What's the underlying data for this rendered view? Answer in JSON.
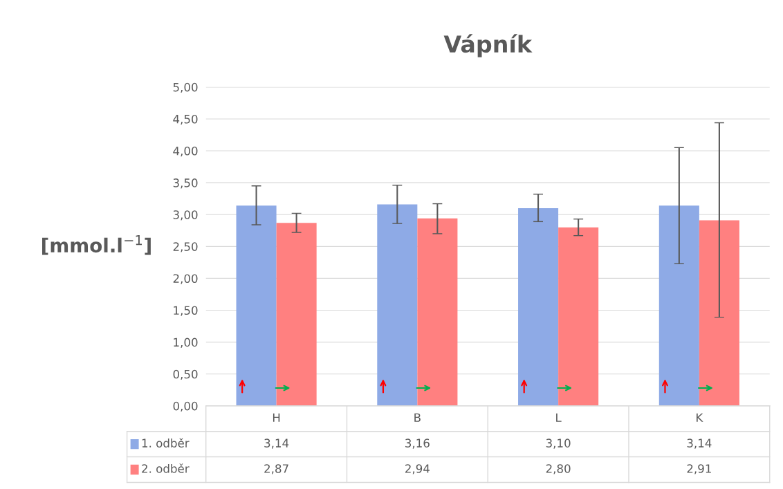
{
  "chart_data": {
    "type": "bar",
    "title": "Vápník",
    "ylabel": "[mmol.l$^{−1}$]",
    "legend": "bottom left",
    "categories": [
      "H",
      "B",
      "L",
      "K"
    ],
    "series": [
      {
        "name": "1. odběr",
        "color": "#8eaae6",
        "values": [
          3.14,
          3.16,
          3.1,
          3.14
        ],
        "value_labels": [
          "3,14",
          "3,16",
          "3,10",
          "3,14"
        ],
        "errors": [
          [
            2.84,
            3.45
          ],
          [
            2.86,
            3.46
          ],
          [
            2.89,
            3.32
          ],
          [
            2.23,
            4.05
          ]
        ]
      },
      {
        "name": "2. odběr",
        "color": "#ff8080",
        "values": [
          2.87,
          2.94,
          2.8,
          2.91
        ],
        "value_labels": [
          "2,87",
          "2,94",
          "2,80",
          "2,91"
        ],
        "errors": [
          [
            2.72,
            3.02
          ],
          [
            2.7,
            3.17
          ],
          [
            2.67,
            2.93
          ],
          [
            1.39,
            4.44
          ]
        ]
      }
    ],
    "ylim": [
      0,
      5
    ],
    "yticks": [
      {
        "value": 0,
        "label": "0,00"
      },
      {
        "value": 0.5,
        "label": "0,50"
      },
      {
        "value": 1,
        "label": "1,00"
      },
      {
        "value": 1.5,
        "label": "1,50"
      },
      {
        "value": 2,
        "label": "2,00"
      },
      {
        "value": 2.5,
        "label": "2,50"
      },
      {
        "value": 3,
        "label": "3,00"
      },
      {
        "value": 3.5,
        "label": "3,50"
      },
      {
        "value": 4,
        "label": "4,00"
      },
      {
        "value": 4.5,
        "label": "4,50"
      },
      {
        "value": 5,
        "label": "5,00"
      }
    ],
    "grid": "y"
  }
}
